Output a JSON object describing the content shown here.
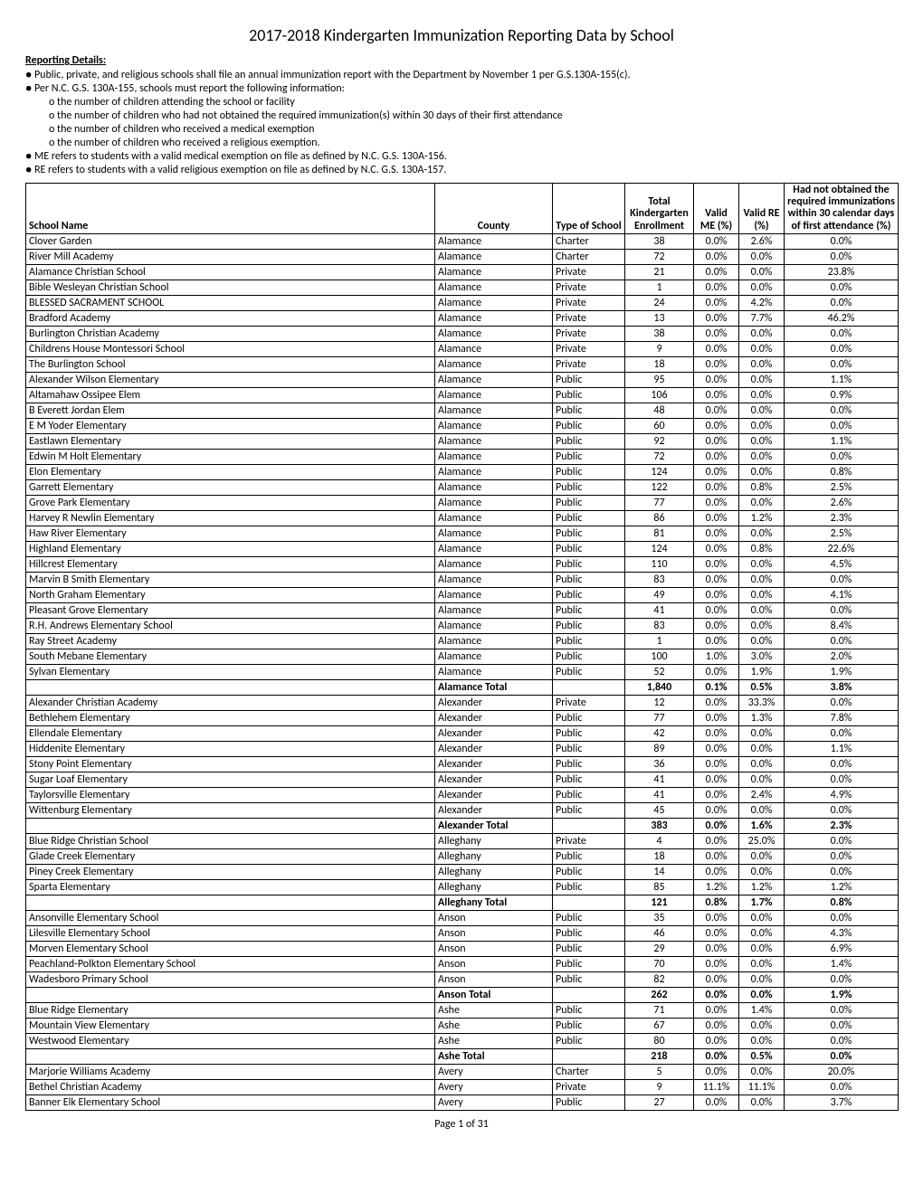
{
  "title": "2017-2018 Kindergarten Immunization Reporting Data by School",
  "details_heading": "Reporting Details:",
  "bullets": [
    "Public, private, and religious schools shall file an annual immunization report with the Department by November 1 per G.S.130A-155(c).",
    "Per N.C. G.S. 130A-155, schools must report the following information:"
  ],
  "sub_bullets": [
    "the number of children attending the school or facility",
    "the number of children who had not obtained the required immunization(s) within 30 days of their first attendance",
    "the number of children who received a medical exemption",
    "the number of children who received a religious exemption."
  ],
  "bullets_after": [
    "ME refers to students with a valid medical exemption on file as defined by N.C. G.S. 130A-156.",
    "RE refers to students with a valid religious exemption on file as defined by N.C. G.S. 130A-157."
  ],
  "columns": {
    "school": "School Name",
    "county": "County",
    "type": "Type of School",
    "enrollment": "Total Kindergarten Enrollment",
    "me": "Valid ME (%)",
    "re": "Valid RE (%)",
    "noimm": "Had not obtained the required immunizations within 30 calendar days of first attendance (%)"
  },
  "rows": [
    {
      "school": "Clover Garden",
      "county": "Alamance",
      "type": "Charter",
      "enr": "38",
      "me": "0.0%",
      "re": "2.6%",
      "noimm": "0.0%"
    },
    {
      "school": "River Mill Academy",
      "county": "Alamance",
      "type": "Charter",
      "enr": "72",
      "me": "0.0%",
      "re": "0.0%",
      "noimm": "0.0%"
    },
    {
      "school": "Alamance Christian School",
      "county": "Alamance",
      "type": "Private",
      "enr": "21",
      "me": "0.0%",
      "re": "0.0%",
      "noimm": "23.8%"
    },
    {
      "school": "Bible Wesleyan Christian School",
      "county": "Alamance",
      "type": "Private",
      "enr": "1",
      "me": "0.0%",
      "re": "0.0%",
      "noimm": "0.0%"
    },
    {
      "school": "BLESSED SACRAMENT SCHOOL",
      "county": "Alamance",
      "type": "Private",
      "enr": "24",
      "me": "0.0%",
      "re": "4.2%",
      "noimm": "0.0%"
    },
    {
      "school": "Bradford Academy",
      "county": "Alamance",
      "type": "Private",
      "enr": "13",
      "me": "0.0%",
      "re": "7.7%",
      "noimm": "46.2%"
    },
    {
      "school": "Burlington Christian Academy",
      "county": "Alamance",
      "type": "Private",
      "enr": "38",
      "me": "0.0%",
      "re": "0.0%",
      "noimm": "0.0%"
    },
    {
      "school": "Childrens House Montessori School",
      "county": "Alamance",
      "type": "Private",
      "enr": "9",
      "me": "0.0%",
      "re": "0.0%",
      "noimm": "0.0%"
    },
    {
      "school": "The Burlington School",
      "county": "Alamance",
      "type": "Private",
      "enr": "18",
      "me": "0.0%",
      "re": "0.0%",
      "noimm": "0.0%"
    },
    {
      "school": "Alexander Wilson Elementary",
      "county": "Alamance",
      "type": "Public",
      "enr": "95",
      "me": "0.0%",
      "re": "0.0%",
      "noimm": "1.1%"
    },
    {
      "school": "Altamahaw Ossipee Elem",
      "county": "Alamance",
      "type": "Public",
      "enr": "106",
      "me": "0.0%",
      "re": "0.0%",
      "noimm": "0.9%"
    },
    {
      "school": "B Everett Jordan Elem",
      "county": "Alamance",
      "type": "Public",
      "enr": "48",
      "me": "0.0%",
      "re": "0.0%",
      "noimm": "0.0%"
    },
    {
      "school": "E M Yoder Elementary",
      "county": "Alamance",
      "type": "Public",
      "enr": "60",
      "me": "0.0%",
      "re": "0.0%",
      "noimm": "0.0%"
    },
    {
      "school": "Eastlawn Elementary",
      "county": "Alamance",
      "type": "Public",
      "enr": "92",
      "me": "0.0%",
      "re": "0.0%",
      "noimm": "1.1%"
    },
    {
      "school": "Edwin M Holt Elementary",
      "county": "Alamance",
      "type": "Public",
      "enr": "72",
      "me": "0.0%",
      "re": "0.0%",
      "noimm": "0.0%"
    },
    {
      "school": "Elon Elementary",
      "county": "Alamance",
      "type": "Public",
      "enr": "124",
      "me": "0.0%",
      "re": "0.0%",
      "noimm": "0.8%"
    },
    {
      "school": "Garrett Elementary",
      "county": "Alamance",
      "type": "Public",
      "enr": "122",
      "me": "0.0%",
      "re": "0.8%",
      "noimm": "2.5%"
    },
    {
      "school": "Grove Park Elementary",
      "county": "Alamance",
      "type": "Public",
      "enr": "77",
      "me": "0.0%",
      "re": "0.0%",
      "noimm": "2.6%"
    },
    {
      "school": "Harvey R Newlin Elementary",
      "county": "Alamance",
      "type": "Public",
      "enr": "86",
      "me": "0.0%",
      "re": "1.2%",
      "noimm": "2.3%"
    },
    {
      "school": "Haw River Elementary",
      "county": "Alamance",
      "type": "Public",
      "enr": "81",
      "me": "0.0%",
      "re": "0.0%",
      "noimm": "2.5%"
    },
    {
      "school": "Highland Elementary",
      "county": "Alamance",
      "type": "Public",
      "enr": "124",
      "me": "0.0%",
      "re": "0.8%",
      "noimm": "22.6%"
    },
    {
      "school": "Hillcrest Elementary",
      "county": "Alamance",
      "type": "Public",
      "enr": "110",
      "me": "0.0%",
      "re": "0.0%",
      "noimm": "4.5%"
    },
    {
      "school": "Marvin B Smith Elementary",
      "county": "Alamance",
      "type": "Public",
      "enr": "83",
      "me": "0.0%",
      "re": "0.0%",
      "noimm": "0.0%"
    },
    {
      "school": "North Graham Elementary",
      "county": "Alamance",
      "type": "Public",
      "enr": "49",
      "me": "0.0%",
      "re": "0.0%",
      "noimm": "4.1%"
    },
    {
      "school": "Pleasant Grove Elementary",
      "county": "Alamance",
      "type": "Public",
      "enr": "41",
      "me": "0.0%",
      "re": "0.0%",
      "noimm": "0.0%"
    },
    {
      "school": "R.H. Andrews Elementary School",
      "county": "Alamance",
      "type": "Public",
      "enr": "83",
      "me": "0.0%",
      "re": "0.0%",
      "noimm": "8.4%"
    },
    {
      "school": "Ray Street Academy",
      "county": "Alamance",
      "type": "Public",
      "enr": "1",
      "me": "0.0%",
      "re": "0.0%",
      "noimm": "0.0%"
    },
    {
      "school": "South Mebane Elementary",
      "county": "Alamance",
      "type": "Public",
      "enr": "100",
      "me": "1.0%",
      "re": "3.0%",
      "noimm": "2.0%"
    },
    {
      "school": "Sylvan Elementary",
      "county": "Alamance",
      "type": "Public",
      "enr": "52",
      "me": "0.0%",
      "re": "1.9%",
      "noimm": "1.9%"
    },
    {
      "total": true,
      "school": "",
      "county": "Alamance Total",
      "type": "",
      "enr": "1,840",
      "me": "0.1%",
      "re": "0.5%",
      "noimm": "3.8%"
    },
    {
      "school": "Alexander Christian Academy",
      "county": "Alexander",
      "type": "Private",
      "enr": "12",
      "me": "0.0%",
      "re": "33.3%",
      "noimm": "0.0%"
    },
    {
      "school": "Bethlehem Elementary",
      "county": "Alexander",
      "type": "Public",
      "enr": "77",
      "me": "0.0%",
      "re": "1.3%",
      "noimm": "7.8%"
    },
    {
      "school": "Ellendale Elementary",
      "county": "Alexander",
      "type": "Public",
      "enr": "42",
      "me": "0.0%",
      "re": "0.0%",
      "noimm": "0.0%"
    },
    {
      "school": "Hiddenite Elementary",
      "county": "Alexander",
      "type": "Public",
      "enr": "89",
      "me": "0.0%",
      "re": "0.0%",
      "noimm": "1.1%"
    },
    {
      "school": "Stony Point Elementary",
      "county": "Alexander",
      "type": "Public",
      "enr": "36",
      "me": "0.0%",
      "re": "0.0%",
      "noimm": "0.0%"
    },
    {
      "school": "Sugar Loaf Elementary",
      "county": "Alexander",
      "type": "Public",
      "enr": "41",
      "me": "0.0%",
      "re": "0.0%",
      "noimm": "0.0%"
    },
    {
      "school": "Taylorsville Elementary",
      "county": "Alexander",
      "type": "Public",
      "enr": "41",
      "me": "0.0%",
      "re": "2.4%",
      "noimm": "4.9%"
    },
    {
      "school": "Wittenburg Elementary",
      "county": "Alexander",
      "type": "Public",
      "enr": "45",
      "me": "0.0%",
      "re": "0.0%",
      "noimm": "0.0%"
    },
    {
      "total": true,
      "school": "",
      "county": "Alexander Total",
      "type": "",
      "enr": "383",
      "me": "0.0%",
      "re": "1.6%",
      "noimm": "2.3%"
    },
    {
      "school": "Blue Ridge Christian School",
      "county": "Alleghany",
      "type": "Private",
      "enr": "4",
      "me": "0.0%",
      "re": "25.0%",
      "noimm": "0.0%"
    },
    {
      "school": "Glade Creek Elementary",
      "county": "Alleghany",
      "type": "Public",
      "enr": "18",
      "me": "0.0%",
      "re": "0.0%",
      "noimm": "0.0%"
    },
    {
      "school": "Piney Creek Elementary",
      "county": "Alleghany",
      "type": "Public",
      "enr": "14",
      "me": "0.0%",
      "re": "0.0%",
      "noimm": "0.0%"
    },
    {
      "school": "Sparta Elementary",
      "county": "Alleghany",
      "type": "Public",
      "enr": "85",
      "me": "1.2%",
      "re": "1.2%",
      "noimm": "1.2%"
    },
    {
      "total": true,
      "school": "",
      "county": "Alleghany Total",
      "type": "",
      "enr": "121",
      "me": "0.8%",
      "re": "1.7%",
      "noimm": "0.8%"
    },
    {
      "school": "Ansonville Elementary School",
      "county": "Anson",
      "type": "Public",
      "enr": "35",
      "me": "0.0%",
      "re": "0.0%",
      "noimm": "0.0%"
    },
    {
      "school": "Lilesville Elementary School",
      "county": "Anson",
      "type": "Public",
      "enr": "46",
      "me": "0.0%",
      "re": "0.0%",
      "noimm": "4.3%"
    },
    {
      "school": "Morven Elementary School",
      "county": "Anson",
      "type": "Public",
      "enr": "29",
      "me": "0.0%",
      "re": "0.0%",
      "noimm": "6.9%"
    },
    {
      "school": "Peachland-Polkton Elementary School",
      "county": "Anson",
      "type": "Public",
      "enr": "70",
      "me": "0.0%",
      "re": "0.0%",
      "noimm": "1.4%"
    },
    {
      "school": "Wadesboro Primary School",
      "county": "Anson",
      "type": "Public",
      "enr": "82",
      "me": "0.0%",
      "re": "0.0%",
      "noimm": "0.0%"
    },
    {
      "total": true,
      "school": "",
      "county": "Anson Total",
      "type": "",
      "enr": "262",
      "me": "0.0%",
      "re": "0.0%",
      "noimm": "1.9%"
    },
    {
      "school": "Blue Ridge Elementary",
      "county": "Ashe",
      "type": "Public",
      "enr": "71",
      "me": "0.0%",
      "re": "1.4%",
      "noimm": "0.0%"
    },
    {
      "school": "Mountain View Elementary",
      "county": "Ashe",
      "type": "Public",
      "enr": "67",
      "me": "0.0%",
      "re": "0.0%",
      "noimm": "0.0%"
    },
    {
      "school": "Westwood Elementary",
      "county": "Ashe",
      "type": "Public",
      "enr": "80",
      "me": "0.0%",
      "re": "0.0%",
      "noimm": "0.0%"
    },
    {
      "total": true,
      "school": "",
      "county": "Ashe Total",
      "type": "",
      "enr": "218",
      "me": "0.0%",
      "re": "0.5%",
      "noimm": "0.0%"
    },
    {
      "school": "Marjorie Williams Academy",
      "county": "Avery",
      "type": "Charter",
      "enr": "5",
      "me": "0.0%",
      "re": "0.0%",
      "noimm": "20.0%"
    },
    {
      "school": "Bethel Christian Academy",
      "county": "Avery",
      "type": "Private",
      "enr": "9",
      "me": "11.1%",
      "re": "11.1%",
      "noimm": "0.0%"
    },
    {
      "school": "Banner Elk Elementary School",
      "county": "Avery",
      "type": "Public",
      "enr": "27",
      "me": "0.0%",
      "re": "0.0%",
      "noimm": "3.7%"
    }
  ],
  "footer": "Page 1 of 31"
}
